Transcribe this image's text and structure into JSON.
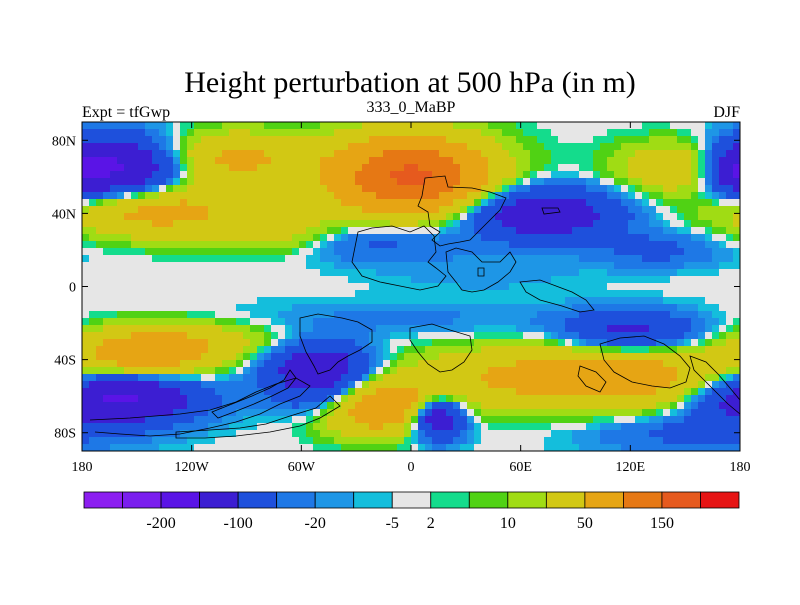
{
  "chart_data": {
    "type": "heatmap",
    "title": "Height perturbation at 500 hPa (in m)",
    "left_label": "Expt = tfGwp",
    "center_label": "333_0_MaBP",
    "right_label": "DJF",
    "x_range": [
      -180,
      180
    ],
    "y_range": [
      -90,
      90
    ],
    "x_ticks": [
      {
        "value": -180,
        "label": "180"
      },
      {
        "value": -120,
        "label": "120W"
      },
      {
        "value": -60,
        "label": "60W"
      },
      {
        "value": 0,
        "label": "0"
      },
      {
        "value": 60,
        "label": "60E"
      },
      {
        "value": 120,
        "label": "120E"
      },
      {
        "value": 180,
        "label": "180"
      }
    ],
    "y_ticks": [
      {
        "value": 80,
        "label": "80N"
      },
      {
        "value": 40,
        "label": "40N"
      },
      {
        "value": 0,
        "label": "0"
      },
      {
        "value": -40,
        "label": "40S"
      },
      {
        "value": -80,
        "label": "80S"
      }
    ],
    "colorbar": {
      "colors": [
        "#8c1ef0",
        "#7a1eee",
        "#5a14e6",
        "#3c1ed2",
        "#1e50dc",
        "#1e78e6",
        "#1e96e6",
        "#14bedc",
        "#e6e6e6",
        "#14dc8c",
        "#50d214",
        "#a0dc14",
        "#d2c814",
        "#e6a514",
        "#e67814",
        "#e65a1e",
        "#e61414"
      ],
      "labels": [
        {
          "after_index": 1,
          "text": "-200"
        },
        {
          "after_index": 3,
          "text": "-100"
        },
        {
          "after_index": 5,
          "text": "-20"
        },
        {
          "after_index": 7,
          "text": "-5"
        },
        {
          "after_index": 8,
          "text": "2"
        },
        {
          "after_index": 10,
          "text": "10"
        },
        {
          "after_index": 12,
          "text": "50"
        },
        {
          "after_index": 14,
          "text": "150"
        }
      ]
    },
    "anomaly_field_centers": [
      {
        "lon": 0,
        "lat": 60,
        "amp": 160,
        "sx": 30,
        "sy": 15
      },
      {
        "lon": -100,
        "lat": 70,
        "amp": 60,
        "sx": 30,
        "sy": 10
      },
      {
        "lon": 150,
        "lat": 65,
        "amp": 50,
        "sx": 25,
        "sy": 10
      },
      {
        "lon": -140,
        "lat": 42,
        "amp": 70,
        "sx": 35,
        "sy": 10
      },
      {
        "lon": -70,
        "lat": 30,
        "amp": 30,
        "sx": 25,
        "sy": 8
      },
      {
        "lon": -160,
        "lat": 65,
        "amp": -110,
        "sx": 25,
        "sy": 12
      },
      {
        "lon": 70,
        "lat": 40,
        "amp": -90,
        "sx": 30,
        "sy": 10
      },
      {
        "lon": 178,
        "lat": 62,
        "amp": -60,
        "sx": 12,
        "sy": 10
      },
      {
        "lon": -20,
        "lat": 25,
        "amp": -30,
        "sx": 30,
        "sy": 8
      },
      {
        "lon": 135,
        "lat": 20,
        "amp": -25,
        "sx": 25,
        "sy": 7
      },
      {
        "lon": 0,
        "lat": -18,
        "amp": -12,
        "sx": 80,
        "sy": 7
      },
      {
        "lon": 40,
        "lat": 8,
        "amp": -8,
        "sx": 40,
        "sy": 8
      },
      {
        "lon": 120,
        "lat": -25,
        "amp": -60,
        "sx": 25,
        "sy": 8
      },
      {
        "lon": -145,
        "lat": -38,
        "amp": 80,
        "sx": 25,
        "sy": 10
      },
      {
        "lon": -50,
        "lat": -45,
        "amp": -90,
        "sx": 20,
        "sy": 10
      },
      {
        "lon": -110,
        "lat": -30,
        "amp": 25,
        "sx": 35,
        "sy": 8
      },
      {
        "lon": -160,
        "lat": -60,
        "amp": -120,
        "sx": 30,
        "sy": 10
      },
      {
        "lon": -40,
        "lat": -62,
        "amp": -50,
        "sx": 22,
        "sy": 8
      },
      {
        "lon": -20,
        "lat": -65,
        "amp": 110,
        "sx": 22,
        "sy": 10
      },
      {
        "lon": 15,
        "lat": -72,
        "amp": -100,
        "sx": 10,
        "sy": 8
      },
      {
        "lon": 60,
        "lat": -50,
        "amp": 50,
        "sx": 45,
        "sy": 12
      },
      {
        "lon": 130,
        "lat": -50,
        "amp": 60,
        "sx": 40,
        "sy": 12
      },
      {
        "lon": 150,
        "lat": -80,
        "amp": -25,
        "sx": 40,
        "sy": 8
      }
    ]
  }
}
